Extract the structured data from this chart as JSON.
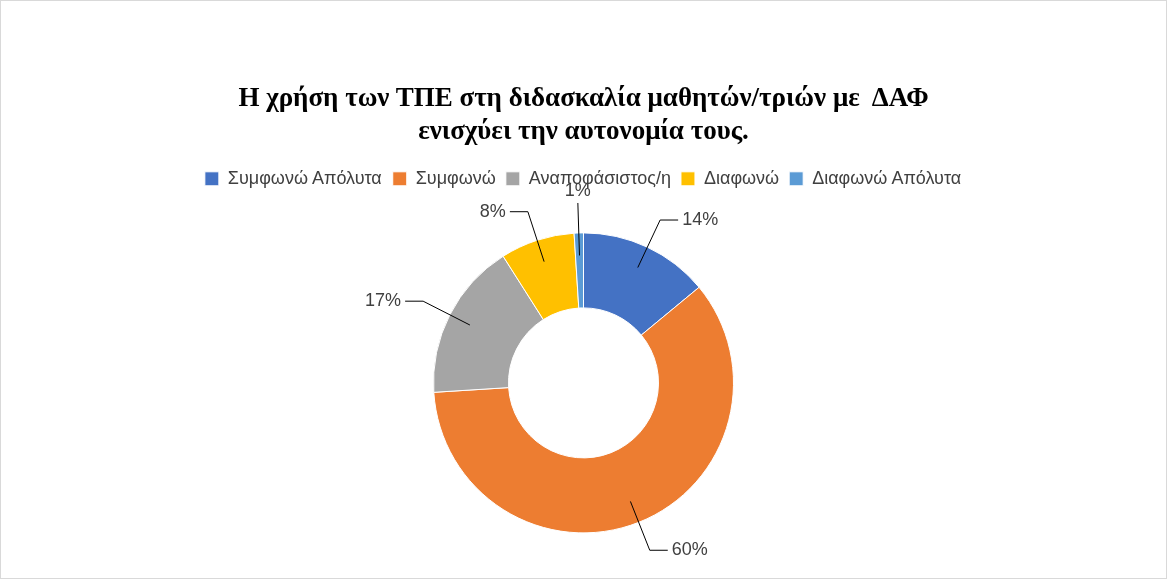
{
  "chart_data": {
    "type": "donut",
    "title": "Η χρήση των ΤΠΕ στη διδασκαλία μαθητών/τριών με  ΔΑΦ\nενισχύει την αυτονομία τους.",
    "categories": [
      "Συμφωνώ Απόλυτα",
      "Συμφωνώ",
      "Αναποφάσιστος/η",
      "Διαφωνώ",
      "Διαφωνώ Απόλυτα"
    ],
    "values": [
      14,
      60,
      17,
      8,
      1
    ],
    "colors": [
      "#4472c4",
      "#ed7d31",
      "#a5a5a5",
      "#ffc000",
      "#5b9bd5"
    ],
    "value_labels": [
      "14%",
      "60%",
      "17%",
      "8%",
      "1%"
    ],
    "legend": "top"
  }
}
